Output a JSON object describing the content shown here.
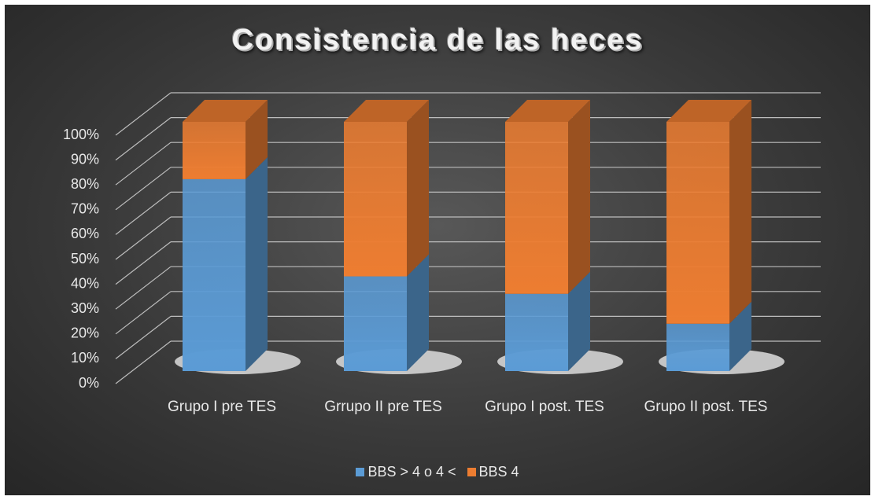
{
  "chart_data": {
    "type": "bar3d_stacked",
    "title": "Consistencia de las heces",
    "categories": [
      "Grupo I pre TES",
      "Grrupo II pre TES",
      "Grupo I post. TES",
      "Grupo II post. TES"
    ],
    "series": [
      {
        "name": "BBS > 4 o 4 <",
        "color": "#5b9bd5",
        "values": [
          77,
          38,
          31,
          19
        ]
      },
      {
        "name": "BBS 4",
        "color": "#ed7d31",
        "values": [
          23,
          62,
          69,
          81
        ]
      }
    ],
    "ylim": [
      0,
      100
    ],
    "yticks": [
      {
        "value": 0,
        "label": "0%"
      },
      {
        "value": 10,
        "label": "10%"
      },
      {
        "value": 20,
        "label": "20%"
      },
      {
        "value": 30,
        "label": "30%"
      },
      {
        "value": 40,
        "label": "40%"
      },
      {
        "value": 50,
        "label": "50%"
      },
      {
        "value": 60,
        "label": "60%"
      },
      {
        "value": 70,
        "label": "70%"
      },
      {
        "value": 80,
        "label": "80%"
      },
      {
        "value": 90,
        "label": "90%"
      },
      {
        "value": 100,
        "label": "100%"
      }
    ],
    "grid": true,
    "legend": "bottom"
  }
}
